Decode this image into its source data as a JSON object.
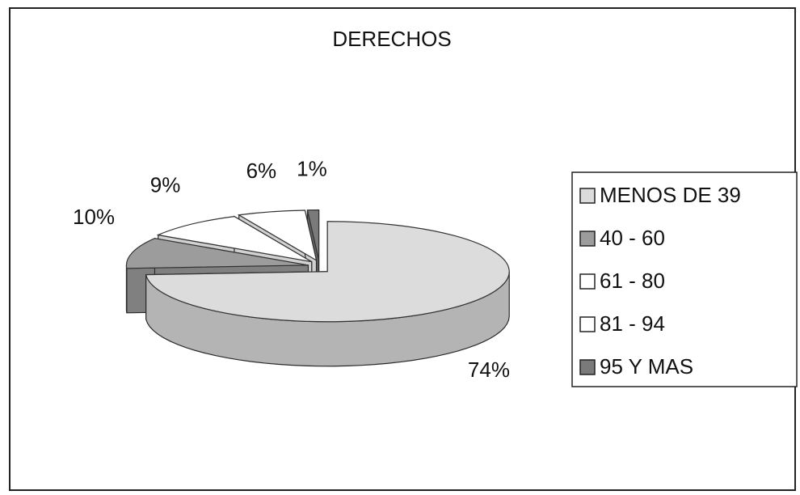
{
  "chart_data": {
    "type": "pie3d",
    "title": "DERECHOS",
    "categories": [
      "MENOS DE 39",
      "40 - 60",
      "61 - 80",
      "81 - 94",
      "95 Y MAS"
    ],
    "values": [
      74,
      10,
      9,
      6,
      1
    ],
    "value_labels": [
      "74%",
      "10%",
      "9%",
      "6%",
      "1%"
    ],
    "colors": [
      "#dcdcdc",
      "#9c9c9c",
      "#ffffff",
      "#ffffff",
      "#7a7a7a"
    ],
    "legend": "right"
  }
}
